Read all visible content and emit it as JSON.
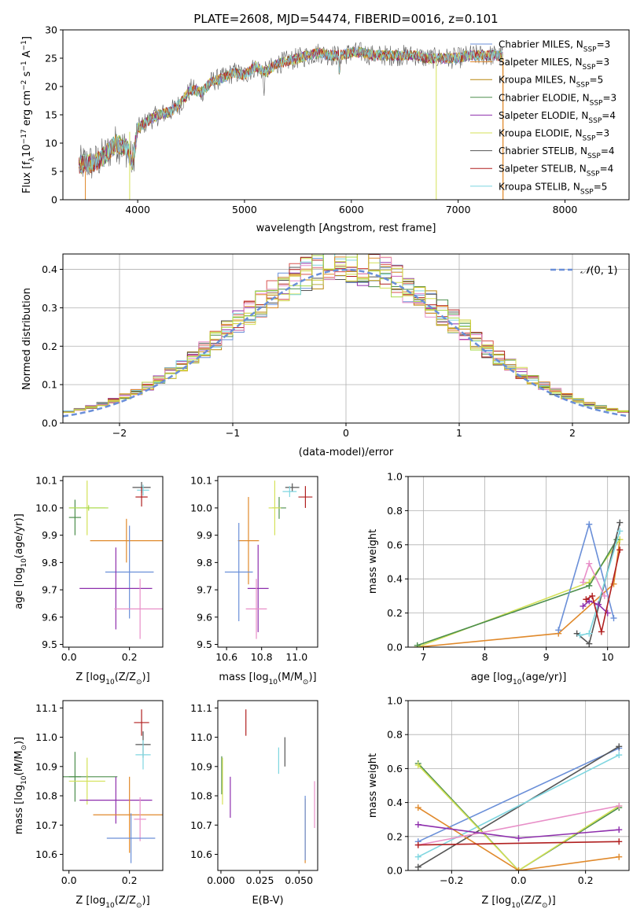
{
  "figure": {
    "title": "PLATE=2608, MJD=54474, FIBERID=0016, z=0.101"
  },
  "colors": {
    "series": [
      "#6a8fd8",
      "#d9534f",
      "#b8860b",
      "#4d8f4d",
      "#8e2fad",
      "#d4e157",
      "#555555",
      "#b01f1f",
      "#7fd6e0"
    ],
    "extra": [
      "#e0892b",
      "#e88fc8",
      "#a8d94a",
      "#cccc33"
    ]
  },
  "chart_data": [
    {
      "type": "line",
      "name": "spectrum",
      "xlabel": "wavelength [Angstrom, rest frame]",
      "ylabel_main": "Flux [f",
      "ylabel_sub": "λ",
      "ylabel_mid": "10",
      "ylabel_sup": "−17",
      "ylabel_tail": " erg cm",
      "ylabel_sup2": "−2",
      "ylabel_tail2": " s",
      "ylabel_sup3": "−1",
      "ylabel_tail3": " A",
      "ylabel_sup4": "−1",
      "ylabel_end": "]",
      "xlim": [
        3300,
        8600
      ],
      "ylim": [
        0,
        30
      ],
      "xticks": [
        4000,
        5000,
        6000,
        7000,
        8000
      ],
      "yticks": [
        0,
        5,
        10,
        15,
        20,
        25,
        30
      ],
      "series": [
        {
          "name": "Chabrier MILES, N",
          "sub": "SSP",
          "tail": "=3",
          "color": "#6a8fd8"
        },
        {
          "name": "Salpeter MILES, N",
          "sub": "SSP",
          "tail": "=3",
          "color": "#e0892b"
        },
        {
          "name": "Kroupa MILES, N",
          "sub": "SSP",
          "tail": "=5",
          "color": "#b8860b"
        },
        {
          "name": "Chabrier ELODIE, N",
          "sub": "SSP",
          "tail": "=3",
          "color": "#4d8f4d"
        },
        {
          "name": "Salpeter ELODIE, N",
          "sub": "SSP",
          "tail": "=4",
          "color": "#8e2fad"
        },
        {
          "name": "Kroupa ELODIE, N",
          "sub": "SSP",
          "tail": "=3",
          "color": "#d4e157"
        },
        {
          "name": "Chabrier STELIB, N",
          "sub": "SSP",
          "tail": "=4",
          "color": "#555555"
        },
        {
          "name": "Salpeter STELIB, N",
          "sub": "SSP",
          "tail": "=4",
          "color": "#b01f1f"
        },
        {
          "name": "Kroupa STELIB, N",
          "sub": "SSP",
          "tail": "=5",
          "color": "#7fd6e0"
        }
      ],
      "continuum": [
        [
          3450,
          6.0
        ],
        [
          3500,
          6.5
        ],
        [
          3600,
          6.5
        ],
        [
          3700,
          8.0
        ],
        [
          3800,
          10.0
        ],
        [
          3900,
          9.0
        ],
        [
          3950,
          6.5
        ],
        [
          4000,
          12.5
        ],
        [
          4100,
          14.0
        ],
        [
          4200,
          15.0
        ],
        [
          4300,
          15.5
        ],
        [
          4400,
          17.0
        ],
        [
          4500,
          19.5
        ],
        [
          4600,
          19.0
        ],
        [
          4700,
          21.0
        ],
        [
          4800,
          21.5
        ],
        [
          4900,
          22.5
        ],
        [
          5000,
          22.0
        ],
        [
          5100,
          23.5
        ],
        [
          5200,
          22.5
        ],
        [
          5300,
          24.0
        ],
        [
          5400,
          24.5
        ],
        [
          5500,
          25.0
        ],
        [
          5600,
          25.5
        ],
        [
          5700,
          26.0
        ],
        [
          5800,
          25.5
        ],
        [
          5900,
          25.5
        ],
        [
          6000,
          26.0
        ],
        [
          6100,
          26.0
        ],
        [
          6200,
          25.5
        ],
        [
          6300,
          25.5
        ],
        [
          6400,
          25.5
        ],
        [
          6500,
          25.5
        ],
        [
          6600,
          25.5
        ],
        [
          6700,
          25.0
        ],
        [
          6800,
          25.0
        ],
        [
          6900,
          25.0
        ],
        [
          7000,
          25.0
        ],
        [
          7100,
          25.5
        ],
        [
          7200,
          25.5
        ],
        [
          7300,
          25.5
        ],
        [
          7400,
          25.5
        ]
      ]
    },
    {
      "type": "histogram",
      "name": "residuals",
      "xlabel": "(data-model)/error",
      "ylabel": "Normed distribution",
      "xlim": [
        -2.5,
        2.5
      ],
      "ylim": [
        0,
        0.44
      ],
      "xticks": [
        -2,
        -1,
        0,
        1,
        2
      ],
      "yticks": [
        0.0,
        0.1,
        0.2,
        0.3,
        0.4
      ],
      "legend": "N(0, 1)",
      "legend_pre": "𝒩",
      "legend_post": "(0, 1)",
      "gauss_color": "#6a8fd8"
    },
    {
      "type": "errorbar",
      "name": "age-vs-Z",
      "xlabel": "Z [log",
      "xlabel_sub": "10",
      "xlabel_tail": "(Z/Z",
      "xlabel_sub2": "⊙",
      "xlabel_end": ")]",
      "ylabel": "age  [log",
      "ylabel_sub": "10",
      "ylabel_tail": "(age/yr)]",
      "xlim": [
        -0.02,
        0.31
      ],
      "ylim": [
        9.49,
        10.115
      ],
      "xticks": [
        0.0,
        0.2
      ],
      "yticks": [
        9.5,
        9.6,
        9.7,
        9.8,
        9.9,
        10.0,
        10.1
      ],
      "points": [
        {
          "x": 0.24,
          "y": 10.075,
          "xerr": 0.03,
          "yerr": 0.02,
          "color": "#555555"
        },
        {
          "x": 0.245,
          "y": 10.065,
          "xerr": 0.02,
          "yerr": 0.02,
          "color": "#7fd6e0"
        },
        {
          "x": 0.24,
          "y": 10.04,
          "xerr": 0.02,
          "yerr": 0.035,
          "color": "#b01f1f"
        },
        {
          "x": 0.02,
          "y": 9.965,
          "xerr": 0.02,
          "yerr": 0.065,
          "color": "#4d8f4d"
        },
        {
          "x": 0.06,
          "y": 10.0,
          "xerr": 0.06,
          "yerr": 0.1,
          "color": "#d4e157"
        },
        {
          "x": 0.065,
          "y": 10.0,
          "xerr": 0.065,
          "yerr": 0.01,
          "color": "#a8d94a"
        },
        {
          "x": 0.19,
          "y": 9.88,
          "xerr": 0.12,
          "yerr": 0.08,
          "color": "#e0892b"
        },
        {
          "x": 0.2,
          "y": 9.765,
          "xerr": 0.08,
          "yerr": 0.17,
          "color": "#6a8fd8"
        },
        {
          "x": 0.155,
          "y": 9.705,
          "xerr": 0.12,
          "yerr": 0.15,
          "color": "#8e2fad"
        },
        {
          "x": 0.235,
          "y": 9.63,
          "xerr": 0.085,
          "yerr": 0.11,
          "color": "#e88fc8"
        }
      ]
    },
    {
      "type": "errorbar",
      "name": "age-vs-mass",
      "xlabel": "mass [log",
      "xlabel_sub": "10",
      "xlabel_tail": "(M/M",
      "xlabel_sub2": "⊙",
      "xlabel_end": ")]",
      "xlim": [
        10.55,
        11.12
      ],
      "ylim": [
        9.49,
        10.115
      ],
      "xticks": [
        10.6,
        10.8,
        11.0
      ],
      "yticks": [
        9.5,
        9.6,
        9.7,
        9.8,
        9.9,
        10.0,
        10.1
      ],
      "points": [
        {
          "x": 10.975,
          "y": 10.075,
          "xerr": 0.04,
          "yerr": 0.015,
          "color": "#555555"
        },
        {
          "x": 10.96,
          "y": 10.06,
          "xerr": 0.04,
          "yerr": 0.02,
          "color": "#7fd6e0"
        },
        {
          "x": 11.05,
          "y": 10.04,
          "xerr": 0.04,
          "yerr": 0.04,
          "color": "#b01f1f"
        },
        {
          "x": 10.9,
          "y": 10.0,
          "xerr": 0.04,
          "yerr": 0.04,
          "color": "#4d8f4d"
        },
        {
          "x": 10.875,
          "y": 10.0,
          "xerr": 0.035,
          "yerr": 0.1,
          "color": "#d4e157"
        },
        {
          "x": 10.725,
          "y": 9.88,
          "xerr": 0.06,
          "yerr": 0.16,
          "color": "#e0892b"
        },
        {
          "x": 10.67,
          "y": 9.765,
          "xerr": 0.08,
          "yerr": 0.18,
          "color": "#6a8fd8"
        },
        {
          "x": 10.78,
          "y": 9.705,
          "xerr": 0.06,
          "yerr": 0.16,
          "color": "#8e2fad"
        },
        {
          "x": 10.77,
          "y": 9.63,
          "xerr": 0.06,
          "yerr": 0.11,
          "color": "#e88fc8"
        }
      ]
    },
    {
      "type": "line",
      "name": "mass-weight-vs-age",
      "xlabel": "age  [log",
      "xlabel_sub": "10",
      "xlabel_tail": "(age/yr)]",
      "ylabel": "mass weight",
      "xlim": [
        6.75,
        10.35
      ],
      "ylim": [
        0,
        1.0
      ],
      "xticks": [
        7,
        8,
        9,
        10
      ],
      "yticks": [
        0.0,
        0.2,
        0.4,
        0.6,
        0.8,
        1.0
      ],
      "series": [
        {
          "color": "#e0892b",
          "x": [
            6.9,
            9.2,
            10.1,
            10.2
          ],
          "y": [
            0.0,
            0.08,
            0.37,
            0.63
          ]
        },
        {
          "color": "#d4e157",
          "x": [
            6.9,
            9.7,
            10.2
          ],
          "y": [
            0.0,
            0.38,
            0.63
          ]
        },
        {
          "color": "#4d8f4d",
          "x": [
            6.9,
            9.7,
            10.15
          ],
          "y": [
            0.01,
            0.36,
            0.63
          ]
        },
        {
          "color": "#6a8fd8",
          "x": [
            9.2,
            9.7,
            10.1
          ],
          "y": [
            0.1,
            0.72,
            0.17
          ]
        },
        {
          "color": "#555555",
          "x": [
            9.5,
            9.7,
            10.2
          ],
          "y": [
            0.08,
            0.02,
            0.73
          ]
        },
        {
          "color": "#7fd6e0",
          "x": [
            9.55,
            9.7,
            10.2
          ],
          "y": [
            0.07,
            0.08,
            0.68
          ]
        },
        {
          "color": "#e88fc8",
          "x": [
            9.6,
            9.7,
            9.95
          ],
          "y": [
            0.38,
            0.49,
            0.3
          ]
        },
        {
          "color": "#8e2fad",
          "x": [
            9.6,
            9.7,
            9.85,
            10.0
          ],
          "y": [
            0.24,
            0.27,
            0.25,
            0.2
          ]
        },
        {
          "color": "#b01f1f",
          "x": [
            9.65,
            9.75,
            9.9,
            10.2
          ],
          "y": [
            0.28,
            0.3,
            0.09,
            0.57
          ]
        }
      ]
    },
    {
      "type": "errorbar",
      "name": "mass-vs-Z",
      "xlabel": "Z [log",
      "xlabel_sub": "10",
      "xlabel_tail": "(Z/Z",
      "xlabel_sub2": "⊙",
      "xlabel_end": ")]",
      "ylabel": "mass [log",
      "ylabel_sub": "10",
      "ylabel_tail": "(M/M",
      "ylabel_sub2": "⊙",
      "ylabel_end": ")]",
      "xlim": [
        -0.02,
        0.31
      ],
      "ylim": [
        10.545,
        11.125
      ],
      "xticks": [
        0.0,
        0.2
      ],
      "yticks": [
        10.6,
        10.7,
        10.8,
        10.9,
        11.0,
        11.1
      ],
      "points": [
        {
          "x": 0.24,
          "y": 11.05,
          "xerr": 0.025,
          "yerr": 0.045,
          "color": "#b01f1f"
        },
        {
          "x": 0.245,
          "y": 10.975,
          "xerr": 0.025,
          "yerr": 0.045,
          "color": "#555555"
        },
        {
          "x": 0.245,
          "y": 10.94,
          "xerr": 0.025,
          "yerr": 0.05,
          "color": "#7fd6e0"
        },
        {
          "x": 0.02,
          "y": 10.865,
          "xerr": 0.02,
          "yerr": 0.085,
          "color": "#4d8f4d"
        },
        {
          "x": 0.06,
          "y": 10.865,
          "xerr": 0.1,
          "yerr": 0.005,
          "color": "#4d8f4d"
        },
        {
          "x": 0.06,
          "y": 10.85,
          "xerr": 0.06,
          "yerr": 0.08,
          "color": "#d4e157"
        },
        {
          "x": 0.155,
          "y": 10.785,
          "xerr": 0.12,
          "yerr": 0.08,
          "color": "#8e2fad"
        },
        {
          "x": 0.2,
          "y": 10.735,
          "xerr": 0.12,
          "yerr": 0.13,
          "color": "#e0892b"
        },
        {
          "x": 0.235,
          "y": 10.72,
          "xerr": 0.02,
          "yerr": 0.075,
          "color": "#e88fc8"
        },
        {
          "x": 0.205,
          "y": 10.655,
          "xerr": 0.08,
          "yerr": 0.085,
          "color": "#6a8fd8"
        }
      ]
    },
    {
      "type": "errorbar",
      "name": "mass-vs-ebv",
      "xlabel": "E(B-V)",
      "xlim": [
        -0.002,
        0.062
      ],
      "ylim": [
        10.545,
        11.125
      ],
      "xticks": [
        0.0,
        0.025,
        0.05
      ],
      "yticks": [
        10.6,
        10.7,
        10.8,
        10.9,
        11.0,
        11.1
      ],
      "points": [
        {
          "x": 0.016,
          "y": 11.05,
          "xerr": 0.0,
          "yerr": 0.045,
          "color": "#b01f1f"
        },
        {
          "x": 0.041,
          "y": 10.95,
          "xerr": 0.0,
          "yerr": 0.05,
          "color": "#555555"
        },
        {
          "x": 0.037,
          "y": 10.92,
          "xerr": 0.0,
          "yerr": 0.045,
          "color": "#7fd6e0"
        },
        {
          "x": 0.0005,
          "y": 10.87,
          "xerr": 0.0,
          "yerr": 0.065,
          "color": "#4d8f4d"
        },
        {
          "x": 0.001,
          "y": 10.85,
          "xerr": 0.0,
          "yerr": 0.08,
          "color": "#d4e157"
        },
        {
          "x": 0.006,
          "y": 10.795,
          "xerr": 0.0,
          "yerr": 0.07,
          "color": "#8e2fad"
        },
        {
          "x": 0.06,
          "y": 10.77,
          "xerr": 0.0,
          "yerr": 0.08,
          "color": "#e88fc8"
        },
        {
          "x": 0.054,
          "y": 10.68,
          "xerr": 0.0,
          "yerr": 0.11,
          "color": "#e0892b"
        },
        {
          "x": 0.054,
          "y": 10.69,
          "xerr": 0.0,
          "yerr": 0.11,
          "color": "#6a8fd8"
        }
      ]
    },
    {
      "type": "line",
      "name": "mass-weight-vs-Z",
      "xlabel": "Z [log",
      "xlabel_sub": "10",
      "xlabel_tail": "(Z/Z",
      "xlabel_sub2": "⊙",
      "xlabel_end": ")]",
      "ylabel": "mass weight",
      "xlim": [
        -0.33,
        0.33
      ],
      "ylim": [
        0,
        1.0
      ],
      "xticks": [
        -0.2,
        0.0,
        0.2
      ],
      "yticks": [
        0.0,
        0.2,
        0.4,
        0.6,
        0.8,
        1.0
      ],
      "series": [
        {
          "color": "#6a8fd8",
          "x": [
            -0.3,
            0.3
          ],
          "y": [
            0.17,
            0.72
          ]
        },
        {
          "color": "#555555",
          "x": [
            -0.3,
            0.3
          ],
          "y": [
            0.02,
            0.73
          ]
        },
        {
          "color": "#7fd6e0",
          "x": [
            -0.3,
            0.3
          ],
          "y": [
            0.08,
            0.68
          ]
        },
        {
          "color": "#4d8f4d",
          "x": [
            -0.3,
            0.0,
            0.3
          ],
          "y": [
            0.63,
            0.0,
            0.37
          ]
        },
        {
          "color": "#d4e157",
          "x": [
            -0.3,
            0.0,
            0.3
          ],
          "y": [
            0.62,
            0.0,
            0.38
          ]
        },
        {
          "color": "#e0892b",
          "x": [
            -0.3,
            0.0,
            0.3
          ],
          "y": [
            0.37,
            0.0,
            0.08
          ]
        },
        {
          "color": "#e88fc8",
          "x": [
            -0.3,
            0.3
          ],
          "y": [
            0.15,
            0.38
          ]
        },
        {
          "color": "#8e2fad",
          "x": [
            -0.3,
            0.0,
            0.3
          ],
          "y": [
            0.27,
            0.19,
            0.24
          ]
        },
        {
          "color": "#b01f1f",
          "x": [
            -0.3,
            0.3
          ],
          "y": [
            0.15,
            0.17
          ]
        }
      ]
    }
  ]
}
